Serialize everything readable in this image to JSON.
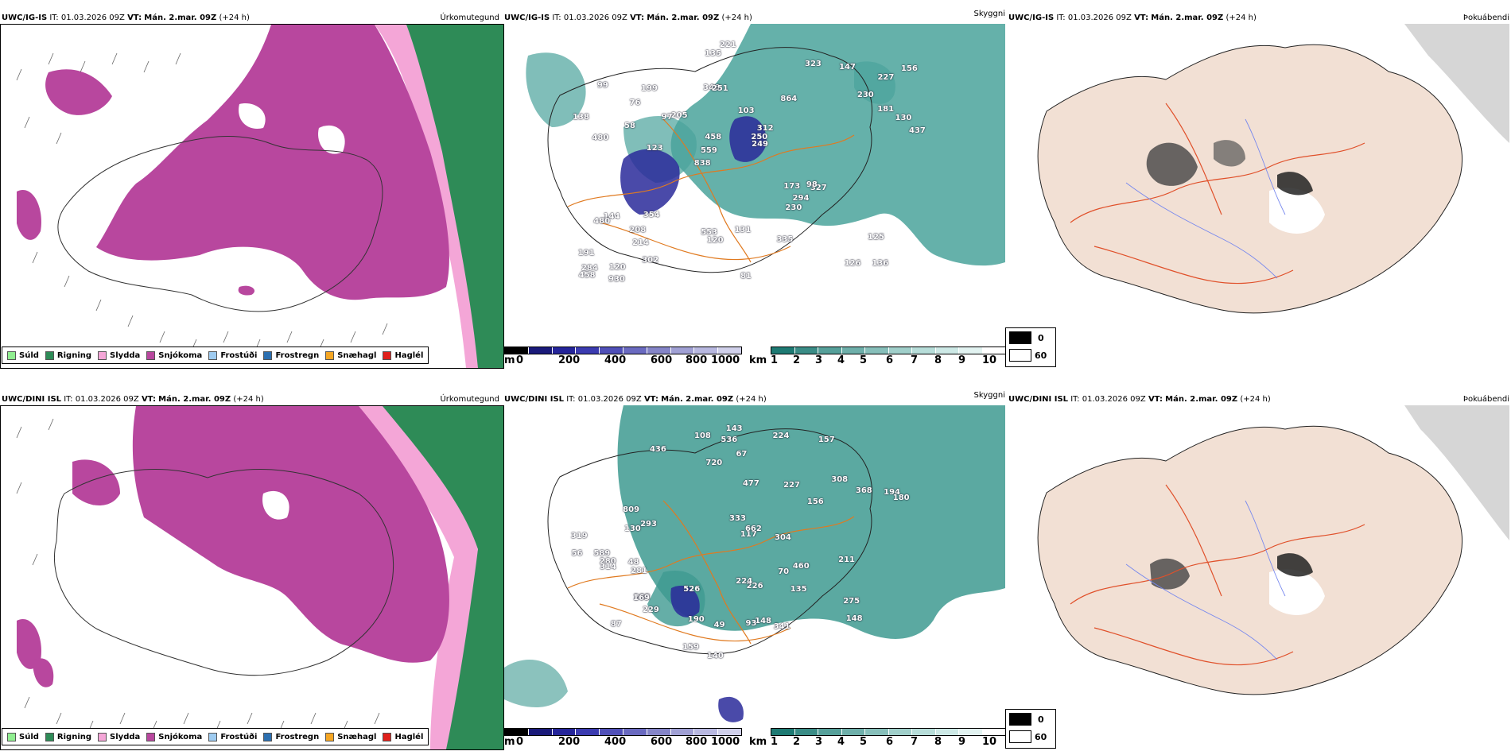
{
  "rows": [
    {
      "header": {
        "model": "UWC/IG-IS",
        "it_label": "IT:",
        "it_value": "01.03.2026 09Z",
        "vt_label": "VT:",
        "vt_value": "Mán. 2.mar. 09Z",
        "lead": "(+24 h)"
      }
    },
    {
      "header": {
        "model": "UWC/DINI ISL",
        "it_label": "IT:",
        "it_value": "01.03.2026 09Z",
        "vt_label": "VT:",
        "vt_value": "Mán. 2.mar. 09Z",
        "lead": "(+24 h)"
      }
    }
  ],
  "panel_titles": {
    "precip": "Úrkomutegund",
    "visibility": "Skyggni",
    "fog": "Þokuábendi"
  },
  "precip_legend": [
    {
      "label": "Súld",
      "color": "#90ee90"
    },
    {
      "label": "Rigning",
      "color": "#2e8b57"
    },
    {
      "label": "Slydda",
      "color": "#f4a6d7"
    },
    {
      "label": "Snjókoma",
      "color": "#b8479e"
    },
    {
      "label": "Frostúði",
      "color": "#9ecbf0"
    },
    {
      "label": "Frostregn",
      "color": "#2c6fb0"
    },
    {
      "label": "Snæhagl",
      "color": "#f5a623"
    },
    {
      "label": "Haglél",
      "color": "#e0201b"
    }
  ],
  "height_bar": {
    "unit": "m",
    "ticks": [
      "0",
      "200",
      "400",
      "600",
      "800",
      "1000"
    ],
    "colors": [
      "#000000",
      "#1a1a7a",
      "#25259a",
      "#3b3bb0",
      "#5050b8",
      "#6a6ac0",
      "#8585c8",
      "#a0a0d4",
      "#b8b8e0",
      "#d0d0ea"
    ]
  },
  "vis_bar": {
    "unit": "km",
    "ticks": [
      "1",
      "2",
      "3",
      "4",
      "5",
      "6",
      "7",
      "8",
      "9",
      "10"
    ],
    "colors": [
      "#1e7a73",
      "#3a8c86",
      "#56a09a",
      "#6eafaa",
      "#87bfba",
      "#a0cfca",
      "#b7ddd9",
      "#cde9e6",
      "#e2f3f1",
      "#ffffff"
    ]
  },
  "fog_legend": {
    "values": [
      "0",
      "60"
    ],
    "colors": [
      "#000000",
      "#ffffff"
    ]
  },
  "visibility_labels": [
    [
      "136",
      "480",
      "227",
      "838",
      "864",
      "120",
      "346",
      "103",
      "144",
      "205",
      "191",
      "214",
      "251",
      "312",
      "327",
      "99",
      "135",
      "437",
      "173",
      "181",
      "559",
      "553",
      "458",
      "199",
      "323",
      "354",
      "126",
      "125",
      "98",
      "81",
      "97",
      "58",
      "230",
      "302",
      "130",
      "250",
      "284",
      "120",
      "249",
      "480",
      "230",
      "156",
      "294",
      "335",
      "208",
      "930",
      "458",
      "131",
      "147",
      "221",
      "123",
      "138",
      "76"
    ],
    [
      "87",
      "157",
      "436",
      "308",
      "226",
      "293",
      "281",
      "282",
      "368",
      "156",
      "589",
      "143",
      "135",
      "117",
      "140",
      "108",
      "148",
      "319",
      "169",
      "159",
      "341",
      "536",
      "720",
      "662",
      "333",
      "190",
      "280",
      "224",
      "477",
      "460",
      "809",
      "229",
      "148",
      "224",
      "275",
      "314",
      "194",
      "304",
      "227",
      "211",
      "180",
      "67",
      "49",
      "48",
      "56",
      "130",
      "70",
      "93",
      "526"
    ]
  ]
}
